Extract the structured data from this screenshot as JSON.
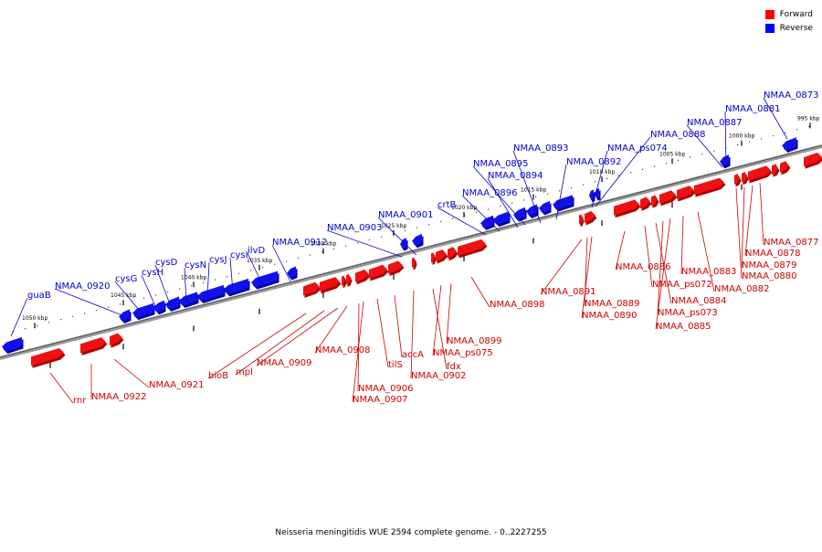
{
  "legend": {
    "forward_label": "Forward",
    "reverse_label": "Reverse",
    "forward_color": "#ff0000",
    "reverse_color": "#0000ff"
  },
  "caption": "Neisseria meningitidis WUE 2594 complete genome. - 0..2227255",
  "colors": {
    "forward": "#ee1111",
    "forward_dark": "#aa0000",
    "reverse": "#1111ee",
    "reverse_dark": "#0000a0",
    "forward_label": "#cc0000",
    "reverse_label": "#0000cc",
    "backbone": "#888888"
  },
  "kbp_ticks": [
    "1050 kbp",
    "1045 kbp",
    "1040 kbp",
    "1035 kbp",
    "1030 kbp",
    "1025 kbp",
    "1020 kbp",
    "1015 kbp",
    "1010 kbp",
    "1005 kbp",
    "1000 kbp",
    "995 kbp"
  ],
  "reverse_genes": [
    "guaB",
    "NMAA_0920",
    "cysG",
    "cysH",
    "cysD",
    "cysN",
    "cysJ",
    "cysI",
    "ilvD",
    "NMAA_0912",
    "NMAA_0903",
    "NMAA_0901",
    "crtB",
    "NMAA_0896",
    "NMAA_0895",
    "NMAA_0894",
    "NMAA_0893",
    "NMAA_0892",
    "NMAA_ps074",
    "NMAA_0888",
    "NMAA_0887",
    "NMAA_0881",
    "NMAA_0873"
  ],
  "forward_genes": [
    "rnr",
    "NMAA_0922",
    "NMAA_0921",
    "bioB",
    "mpl",
    "NMAA_0909",
    "NMAA_0908",
    "NMAA_0906",
    "NMAA_0907",
    "tilS",
    "accA",
    "NMAA_0902",
    "fdx",
    "NMAA_ps075",
    "NMAA_0899",
    "NMAA_0898",
    "NMAA_0891",
    "NMAA_0889",
    "NMAA_0890",
    "NMAA_0886",
    "NMAA_ps072",
    "NMAA_0884",
    "NMAA_ps073",
    "NMAA_0885",
    "NMAA_0883",
    "NMAA_0882",
    "NMAA_0880",
    "NMAA_0879",
    "NMAA_0878",
    "NMAA_0877"
  ]
}
